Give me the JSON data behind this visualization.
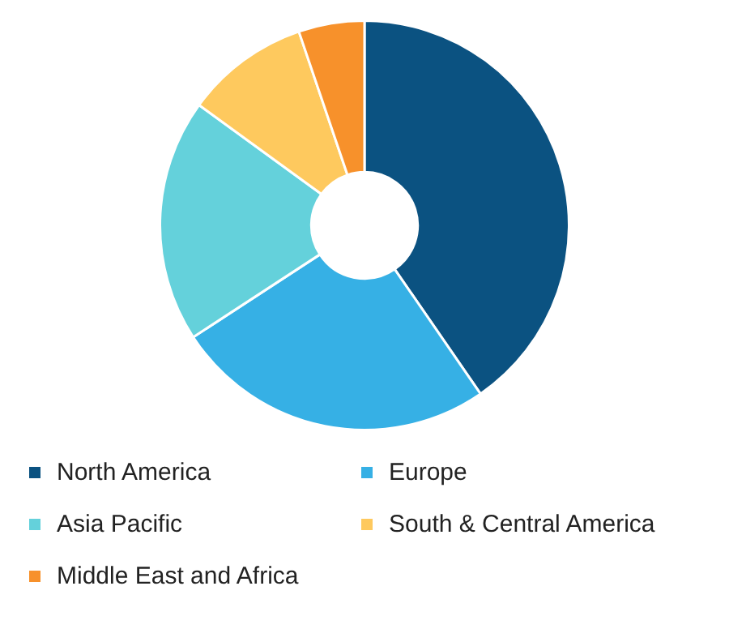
{
  "chart_data": {
    "type": "donut",
    "categories": [
      "North America",
      "Europe",
      "Asia Pacific",
      "South & Central America",
      "Middle East and Africa"
    ],
    "values": [
      40.4,
      25.4,
      19.2,
      9.8,
      5.2
    ],
    "colors": [
      "#0b5281",
      "#36b0e5",
      "#64d1db",
      "#fec95e",
      "#f7912b"
    ],
    "legend": "bottom"
  }
}
